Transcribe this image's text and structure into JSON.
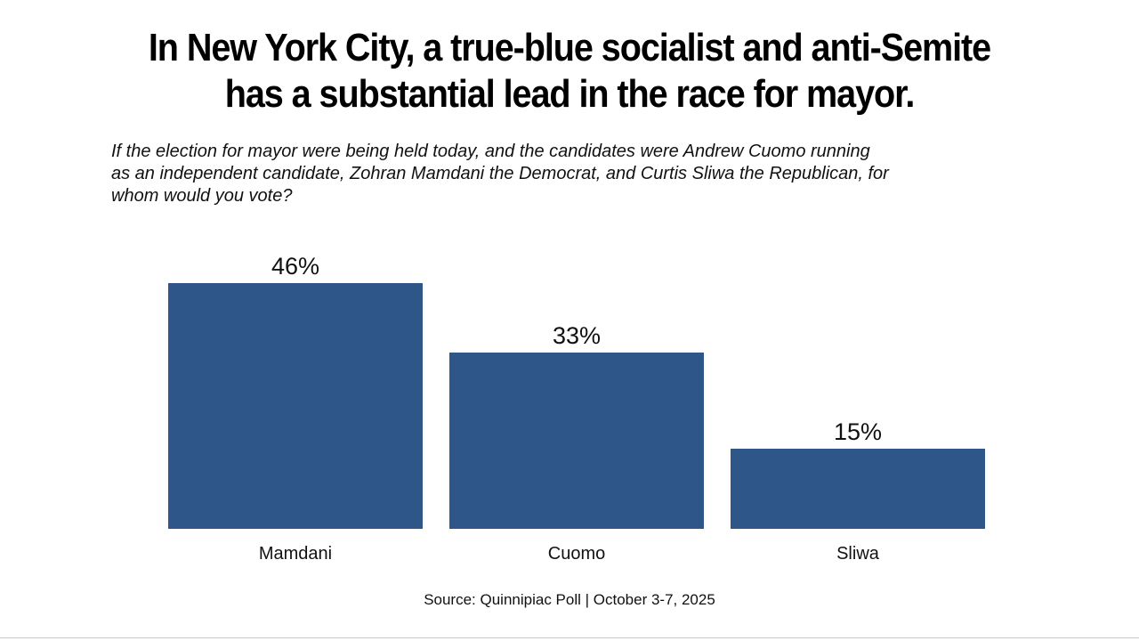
{
  "header": {
    "title_lines": [
      "In New York City, a true-blue socialist and anti-Semite",
      "has a substantial lead in the race for mayor."
    ],
    "subtitle_lines": [
      "If the election for mayor were being held today, and the candidates were Andrew Cuomo running",
      "as an independent candidate, Zohran Mamdani the Democrat, and Curtis Sliwa the Republican, for",
      "whom would you vote?"
    ]
  },
  "source": "Source: Quinnipiac Poll | October 3-7, 2025",
  "chart_data": {
    "type": "bar",
    "categories": [
      "Mamdani",
      "Cuomo",
      "Sliwa"
    ],
    "values": [
      46,
      33,
      15
    ],
    "data_labels": [
      "46%",
      "33%",
      "15%"
    ],
    "ylim": [
      0,
      46
    ],
    "bar_color": "#2f5689",
    "grid": false,
    "legend": "none"
  }
}
